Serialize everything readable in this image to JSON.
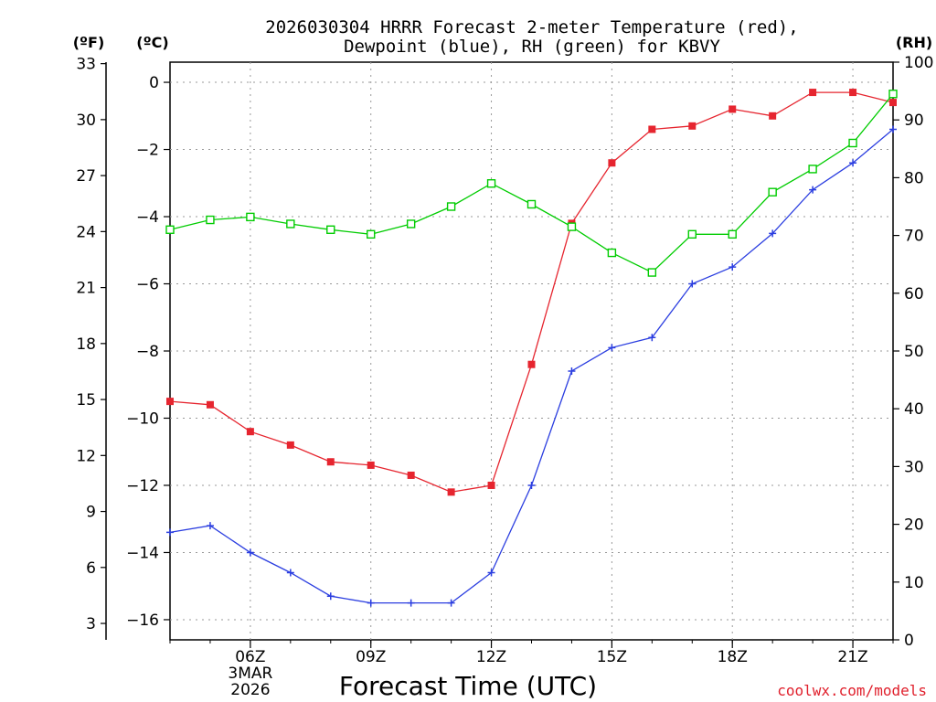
{
  "chart_data": {
    "type": "line",
    "title_line1": "2026030304 HRRR Forecast 2-meter Temperature (red),",
    "title_line2": "Dewpoint (blue), RH (green) for KBVY",
    "xlabel": "Forecast Time (UTC)",
    "credit": "coolwx.com/models",
    "units": {
      "fahrenheit": "(ºF)",
      "celsius": "(ºC)",
      "rh": "(RH)"
    },
    "x_hours": [
      4,
      5,
      6,
      7,
      8,
      9,
      10,
      11,
      12,
      13,
      14,
      15,
      16,
      17,
      18,
      19,
      20,
      21,
      22
    ],
    "xlim": [
      4,
      22
    ],
    "x_ticks": [
      {
        "hour": 6,
        "label": "06Z"
      },
      {
        "hour": 9,
        "label": "09Z"
      },
      {
        "hour": 12,
        "label": "12Z"
      },
      {
        "hour": 15,
        "label": "15Z"
      },
      {
        "hour": 18,
        "label": "18Z"
      },
      {
        "hour": 21,
        "label": "21Z"
      }
    ],
    "date_label": {
      "hour": 6,
      "line1": "3MAR",
      "line2": "2026"
    },
    "y_celsius": {
      "ylim": [
        -16.6,
        0.6
      ],
      "ticks": [
        0,
        -2,
        -4,
        -6,
        -8,
        -10,
        -12,
        -14,
        -16
      ]
    },
    "y_fahrenheit": {
      "ticks": [
        3,
        6,
        9,
        12,
        15,
        18,
        21,
        24,
        27,
        30,
        33
      ]
    },
    "y_rh": {
      "ylim": [
        0,
        100
      ],
      "ticks": [
        0,
        10,
        20,
        30,
        40,
        50,
        60,
        70,
        80,
        90,
        100
      ]
    },
    "colors": {
      "temperature": "#e6252f",
      "dewpoint": "#2b3ee0",
      "rh": "#00cc00",
      "grid": "#999999"
    },
    "series": [
      {
        "name": "Temperature",
        "unit": "C",
        "values": [
          -9.5,
          -9.6,
          -10.4,
          -10.8,
          -11.3,
          -11.4,
          -11.7,
          -12.2,
          -12.0,
          -8.4,
          -4.2,
          -2.4,
          -1.4,
          -1.3,
          -0.8,
          -1.0,
          -0.3,
          -0.3,
          -0.6
        ]
      },
      {
        "name": "Dewpoint",
        "unit": "C",
        "values": [
          -13.4,
          -13.2,
          -14.0,
          -14.6,
          -15.3,
          -15.5,
          -15.5,
          -15.5,
          -14.6,
          -12.0,
          -8.6,
          -7.9,
          -7.6,
          -6.0,
          -5.5,
          -4.5,
          -3.2,
          -2.4,
          -1.4
        ]
      },
      {
        "name": "RH",
        "unit": "%",
        "values": [
          71,
          72.7,
          73.2,
          72,
          71,
          70.2,
          72,
          75,
          79,
          75.4,
          71.5,
          67,
          63.6,
          70.2,
          70.2,
          77.5,
          81.5,
          86,
          94.5
        ]
      }
    ]
  }
}
